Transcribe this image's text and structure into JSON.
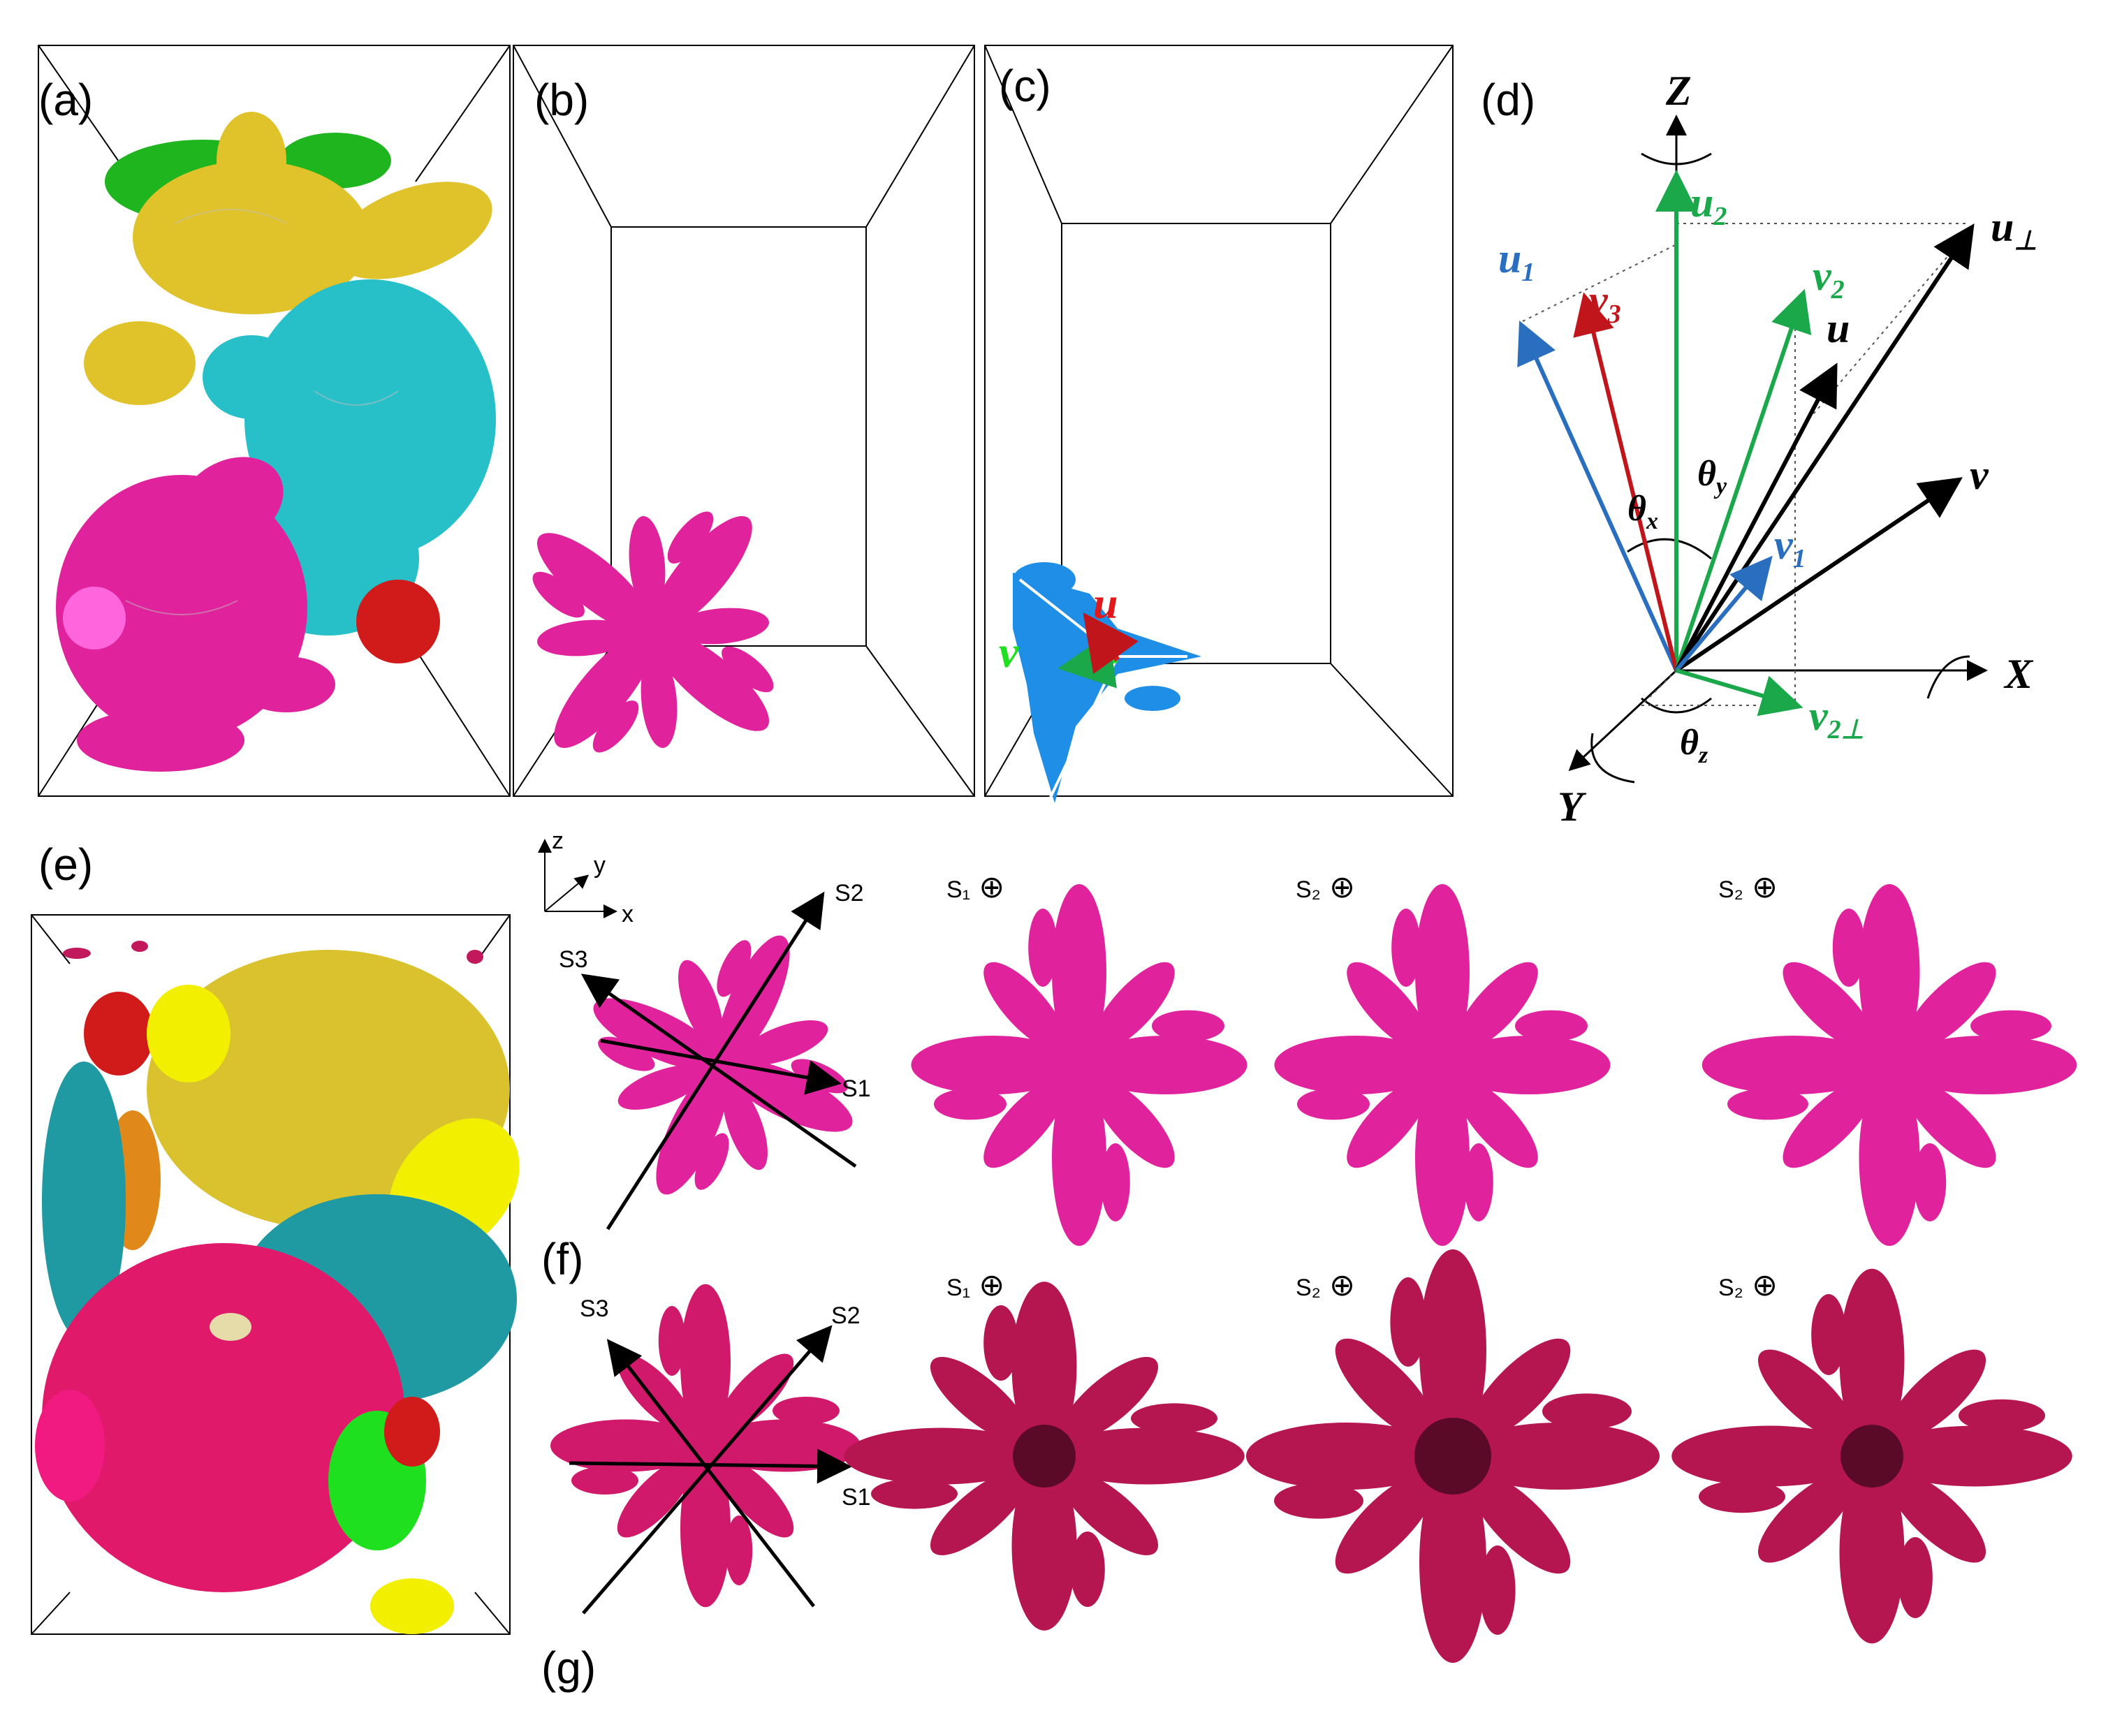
{
  "panels": {
    "a": "(a)",
    "b": "(b)",
    "c": "(c)",
    "d": "(d)",
    "e": "(e)",
    "f": "(f)",
    "g": "(g)"
  },
  "panel_c": {
    "u": "u",
    "v": "v"
  },
  "panel_d": {
    "Z": "Z",
    "X": "X",
    "Y": "Y",
    "u1_base": "u",
    "u1_sub": "1",
    "u2_base": "u",
    "u2_sub": "2",
    "uperp_base": "u",
    "uperp_sub": "⊥",
    "v2_base": "v",
    "v2_sub": "2",
    "u": "u",
    "v": "v",
    "v3_base": "v",
    "v3_sub": "3",
    "v1_base": "v",
    "v1_sub": "1",
    "v2perp_base": "v",
    "v2perp_sub": "2⊥",
    "thx_base": "θ",
    "thx_sub": "x",
    "thy_base": "θ",
    "thy_sub": "y",
    "thz_base": "θ",
    "thz_sub": "z"
  },
  "axes_small": {
    "z": "z",
    "y": "y",
    "x": "x"
  },
  "row_f": {
    "s1": "S1",
    "s2": "S2",
    "s3": "S3",
    "v1": "S₁",
    "v2": "S₂",
    "v3": "S₂"
  },
  "row_g": {
    "s1": "S1",
    "s2": "S2",
    "s3": "S3",
    "v1": "S₁",
    "v2": "S₂",
    "v3": "S₂"
  },
  "colors": {
    "magenta": "#e0239c",
    "crimson": "#c2195c",
    "cyan": "#27bfc8",
    "gold": "#e0c22a",
    "green": "#1fb51f",
    "red": "#d11a1a",
    "blue_arrow": "#2a6fbf",
    "green_arrow": "#1aa84a",
    "red_arrow": "#c0161b"
  }
}
